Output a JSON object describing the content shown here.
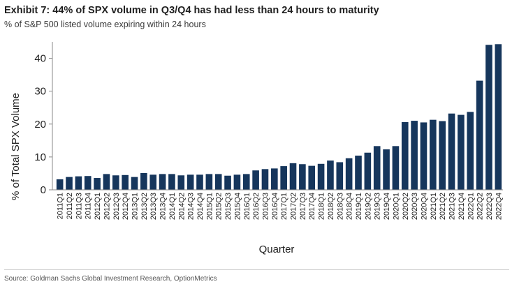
{
  "header": {
    "title": "Exhibit 7: 44% of SPX volume in Q3/Q4 has had less than 24 hours to maturity",
    "subtitle": "% of S&P 500 listed volume expiring within 24 hours"
  },
  "footer": {
    "source": "Source: Goldman Sachs Global Investment Research, OptionMetrics"
  },
  "chart_data": {
    "type": "bar",
    "title": "",
    "xlabel": "Quarter",
    "ylabel": "% of Total SPX Volume",
    "ylim": [
      0,
      45
    ],
    "yticks": [
      0,
      10,
      20,
      30,
      40
    ],
    "grid": false,
    "legend": "none",
    "bar_color": "#16365c",
    "categories": [
      "2011Q1",
      "2011Q2",
      "2011Q3",
      "2011Q4",
      "2012Q1",
      "2012Q2",
      "2012Q3",
      "2012Q4",
      "2013Q1",
      "2013Q2",
      "2013Q3",
      "2013Q4",
      "2014Q1",
      "2014Q2",
      "2014Q3",
      "2014Q4",
      "2015Q1",
      "2015Q2",
      "2015Q3",
      "2015Q4",
      "2016Q1",
      "2016Q2",
      "2016Q3",
      "2016Q4",
      "2017Q1",
      "2017Q2",
      "2017Q3",
      "2017Q4",
      "2018Q1",
      "2018Q2",
      "2018Q3",
      "2018Q4",
      "2019Q1",
      "2019Q2",
      "2019Q3",
      "2019Q4",
      "2020Q1",
      "2020Q2",
      "2020Q3",
      "2020Q4",
      "2021Q1",
      "2021Q2",
      "2021Q3",
      "2021Q4",
      "2022Q1",
      "2022Q2",
      "2022Q3",
      "2022Q4"
    ],
    "values": [
      3.2,
      3.9,
      4.1,
      4.2,
      3.6,
      4.8,
      4.4,
      4.5,
      3.9,
      5.1,
      4.6,
      4.8,
      4.8,
      4.4,
      4.6,
      4.6,
      4.8,
      4.8,
      4.3,
      4.6,
      4.8,
      5.9,
      6.3,
      6.5,
      7.2,
      8.1,
      7.8,
      7.3,
      7.9,
      8.9,
      8.4,
      9.6,
      10.4,
      11.3,
      13.3,
      12.3,
      13.3,
      20.6,
      21.0,
      20.5,
      21.3,
      20.9,
      23.2,
      22.8,
      23.7,
      33.2,
      44.1,
      44.3
    ]
  }
}
